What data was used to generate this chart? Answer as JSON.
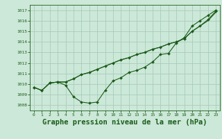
{
  "background_color": "#cce8d8",
  "grid_color": "#aaccbb",
  "line_color": "#1a5c1a",
  "marker_color": "#1a5c1a",
  "xlabel": "Graphe pression niveau de la mer (hPa)",
  "xlabel_fontsize": 7.5,
  "ylim": [
    1007.5,
    1017.5
  ],
  "xlim": [
    -0.5,
    23.5
  ],
  "yticks": [
    1008,
    1009,
    1010,
    1011,
    1012,
    1013,
    1014,
    1015,
    1016,
    1017
  ],
  "xticks": [
    0,
    1,
    2,
    3,
    4,
    5,
    6,
    7,
    8,
    9,
    10,
    11,
    12,
    13,
    14,
    15,
    16,
    17,
    18,
    19,
    20,
    21,
    22,
    23
  ],
  "series1": [
    1009.7,
    1009.4,
    1010.1,
    1010.2,
    1009.9,
    1008.8,
    1008.3,
    1008.2,
    1008.3,
    1009.4,
    1010.3,
    1010.6,
    1011.1,
    1011.3,
    1011.6,
    1012.1,
    1012.8,
    1012.9,
    1013.9,
    1014.4,
    1015.5,
    1016.0,
    1016.5,
    1017.0
  ],
  "series2": [
    1009.7,
    1009.4,
    1010.1,
    1010.2,
    1010.2,
    1010.5,
    1010.9,
    1011.1,
    1011.4,
    1011.7,
    1012.0,
    1012.3,
    1012.5,
    1012.8,
    1013.0,
    1013.3,
    1013.5,
    1013.8,
    1014.0,
    1014.3,
    1015.0,
    1015.5,
    1016.1,
    1016.9
  ],
  "series3": [
    1009.7,
    1009.4,
    1010.1,
    1010.2,
    1010.2,
    1010.5,
    1010.9,
    1011.1,
    1011.4,
    1011.7,
    1012.0,
    1012.3,
    1012.5,
    1012.8,
    1013.0,
    1013.3,
    1013.5,
    1013.8,
    1014.0,
    1014.3,
    1015.0,
    1015.5,
    1016.0,
    1016.8
  ]
}
